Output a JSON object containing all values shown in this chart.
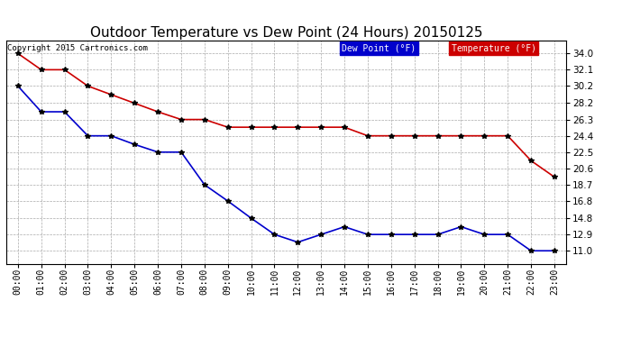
{
  "title": "Outdoor Temperature vs Dew Point (24 Hours) 20150125",
  "copyright": "Copyright 2015 Cartronics.com",
  "background_color": "#ffffff",
  "plot_bg_color": "#ffffff",
  "grid_color": "#aaaaaa",
  "time_labels": [
    "00:00",
    "01:00",
    "02:00",
    "03:00",
    "04:00",
    "05:00",
    "06:00",
    "07:00",
    "08:00",
    "09:00",
    "10:00",
    "11:00",
    "12:00",
    "13:00",
    "14:00",
    "15:00",
    "16:00",
    "17:00",
    "18:00",
    "19:00",
    "20:00",
    "21:00",
    "22:00",
    "23:00"
  ],
  "yticks": [
    11.0,
    12.9,
    14.8,
    16.8,
    18.7,
    20.6,
    22.5,
    24.4,
    26.3,
    28.2,
    30.2,
    32.1,
    34.0
  ],
  "ylim": [
    9.5,
    35.5
  ],
  "temperature": [
    34.0,
    32.1,
    32.1,
    30.2,
    29.2,
    28.2,
    27.2,
    26.3,
    26.3,
    25.4,
    25.4,
    25.4,
    25.4,
    25.4,
    25.4,
    24.4,
    24.4,
    24.4,
    24.4,
    24.4,
    24.4,
    24.4,
    21.5,
    19.6
  ],
  "dew_point": [
    30.2,
    27.2,
    27.2,
    24.4,
    24.4,
    23.4,
    22.5,
    22.5,
    18.7,
    16.8,
    14.8,
    12.9,
    12.0,
    12.9,
    13.8,
    12.9,
    12.9,
    12.9,
    12.9,
    13.8,
    12.9,
    12.9,
    11.0,
    11.0
  ],
  "temp_color": "#cc0000",
  "dew_color": "#0000cc",
  "marker": "*",
  "marker_size": 4,
  "line_width": 1.2,
  "legend_temp_label": "Temperature (°F)",
  "legend_dew_label": "Dew Point (°F)",
  "legend_temp_bg": "#cc0000",
  "legend_dew_bg": "#0000cc",
  "legend_text_color": "#ffffff",
  "title_fontsize": 11,
  "tick_fontsize": 7,
  "copyright_fontsize": 6.5
}
